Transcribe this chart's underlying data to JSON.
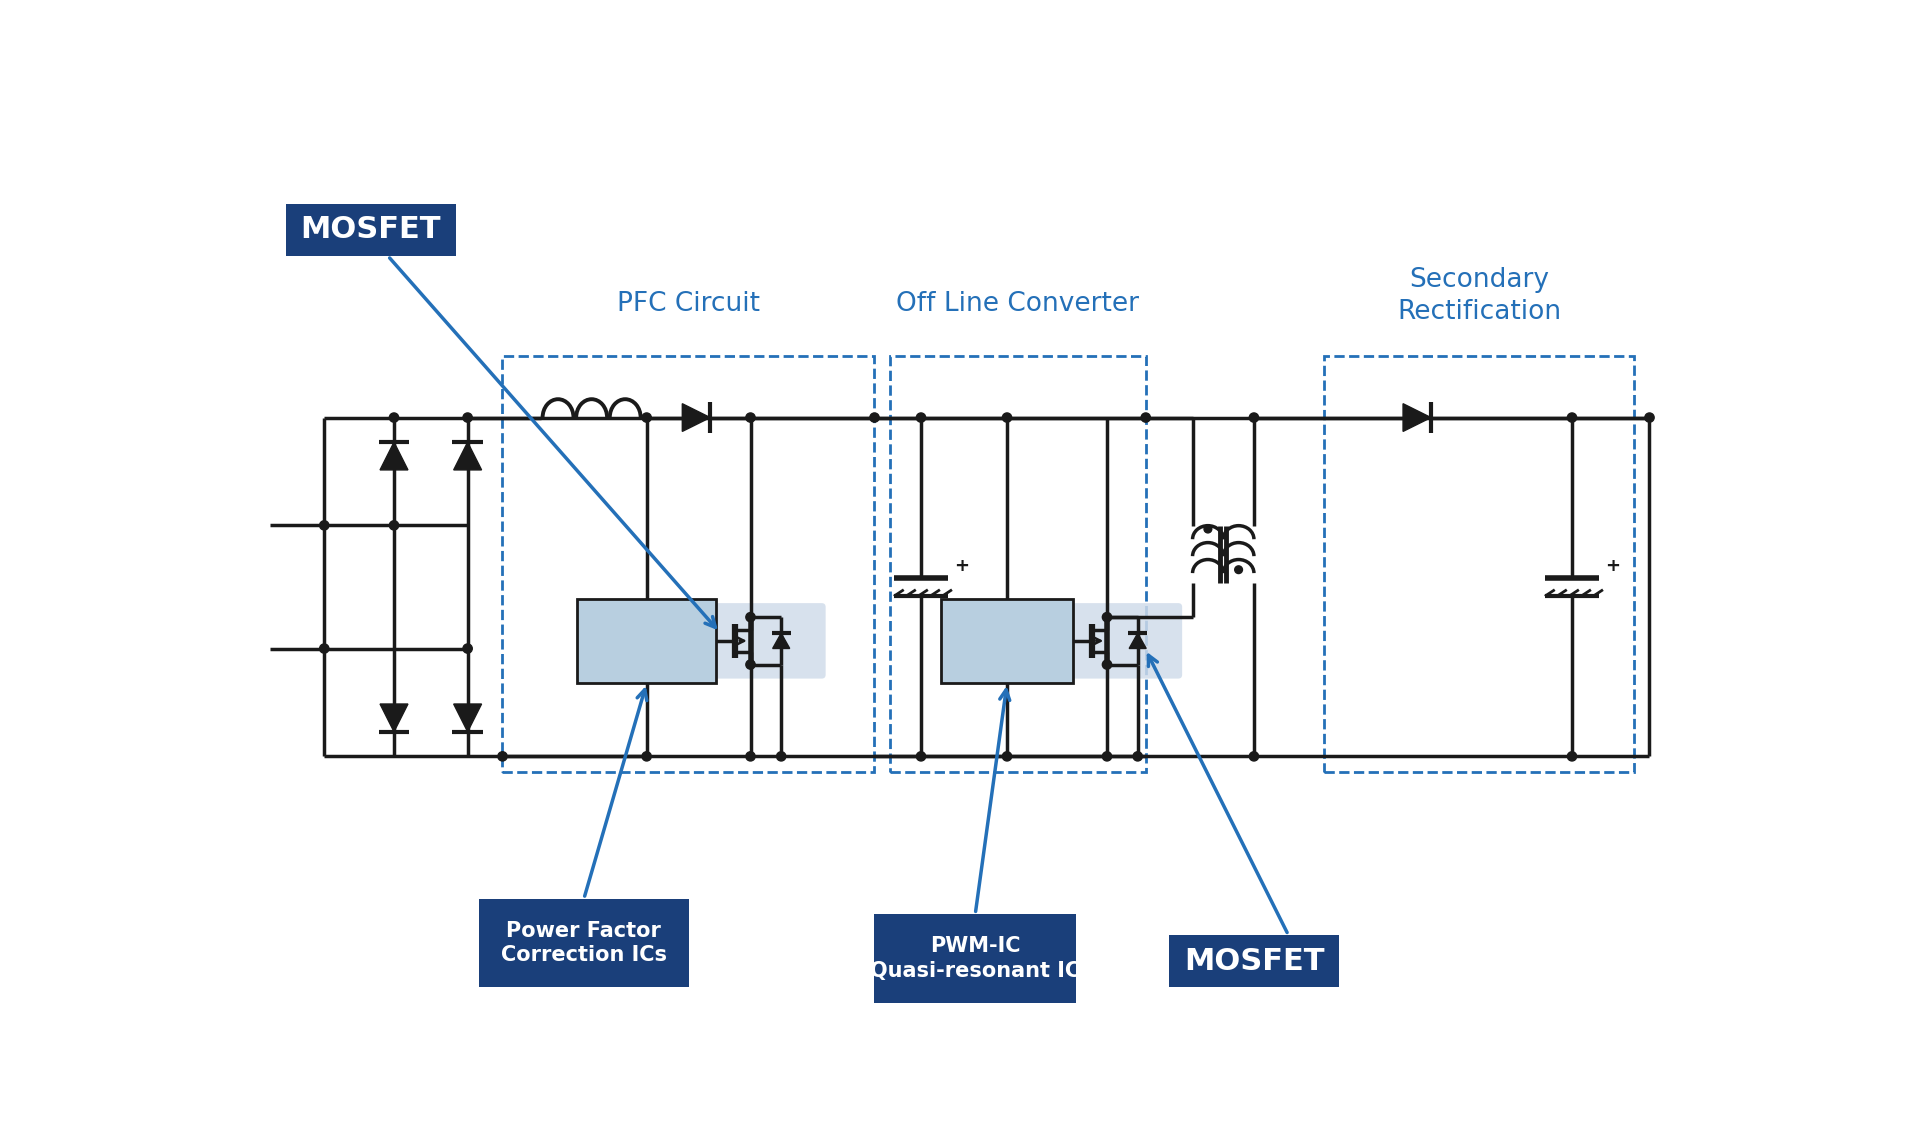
{
  "bg_color": "#ffffff",
  "cc": "#1a1a1a",
  "blue": "#2470b8",
  "dark_blue": "#1a3f7a",
  "ic_fill": "#b8cfe0",
  "mos_bg": "#d0dcea",
  "lw": 2.5,
  "labels": {
    "mosfet1": "MOSFET",
    "pfc": "PFC Circuit",
    "offline": "Off Line Converter",
    "secondary": "Secondary\nRectification",
    "pfc_ic": "Power Factor\nCorrection ICs",
    "pwm_ic_1": "PWM-IC",
    "pwm_ic_2": "Quasi-resonant IC",
    "mosfet2": "MOSFET"
  }
}
